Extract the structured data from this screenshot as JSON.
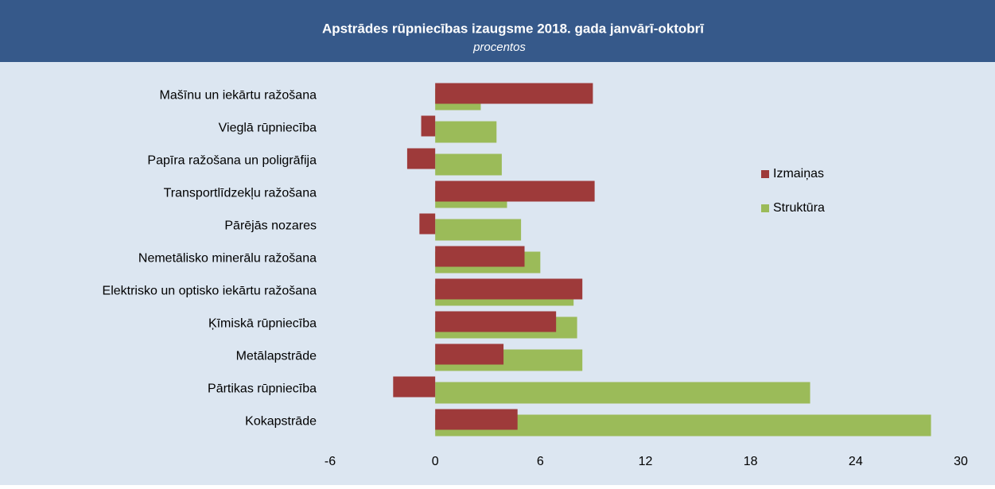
{
  "chart_data": {
    "type": "barh",
    "title": "Apstrādes rūpniecības izaugsme 2018. gada janvārī-oktobrī",
    "subtitle": "procentos",
    "categories": [
      "Mašīnu un iekārtu ražošana",
      "Vieglā rūpniecība",
      "Papīra ražošana un poligrāfija",
      "Transportlīdzekļu ražošana",
      "Pārējās nozares",
      "Nemetālisko minerālu ražošana",
      "Elektrisko un optisko iekārtu ražošana",
      "Ķīmiskā rūpniecība",
      "Metālapstrāde",
      "Pārtikas rūpniecība",
      "Kokapstrāde"
    ],
    "series": [
      {
        "name": "Izmaiņas",
        "color": "#9e3a3a",
        "values": [
          9.0,
          -0.8,
          -1.6,
          9.1,
          -0.9,
          5.1,
          8.4,
          6.9,
          3.9,
          -2.4,
          4.7
        ]
      },
      {
        "name": "Struktūra",
        "color": "#9bbb59",
        "values": [
          2.6,
          3.5,
          3.8,
          4.1,
          4.9,
          6.0,
          7.9,
          8.1,
          8.4,
          21.4,
          28.3
        ]
      }
    ],
    "xlim": [
      -6,
      30
    ],
    "xticks": [
      -6,
      0,
      6,
      12,
      18,
      24,
      30
    ],
    "grid": false,
    "legend": "right"
  }
}
